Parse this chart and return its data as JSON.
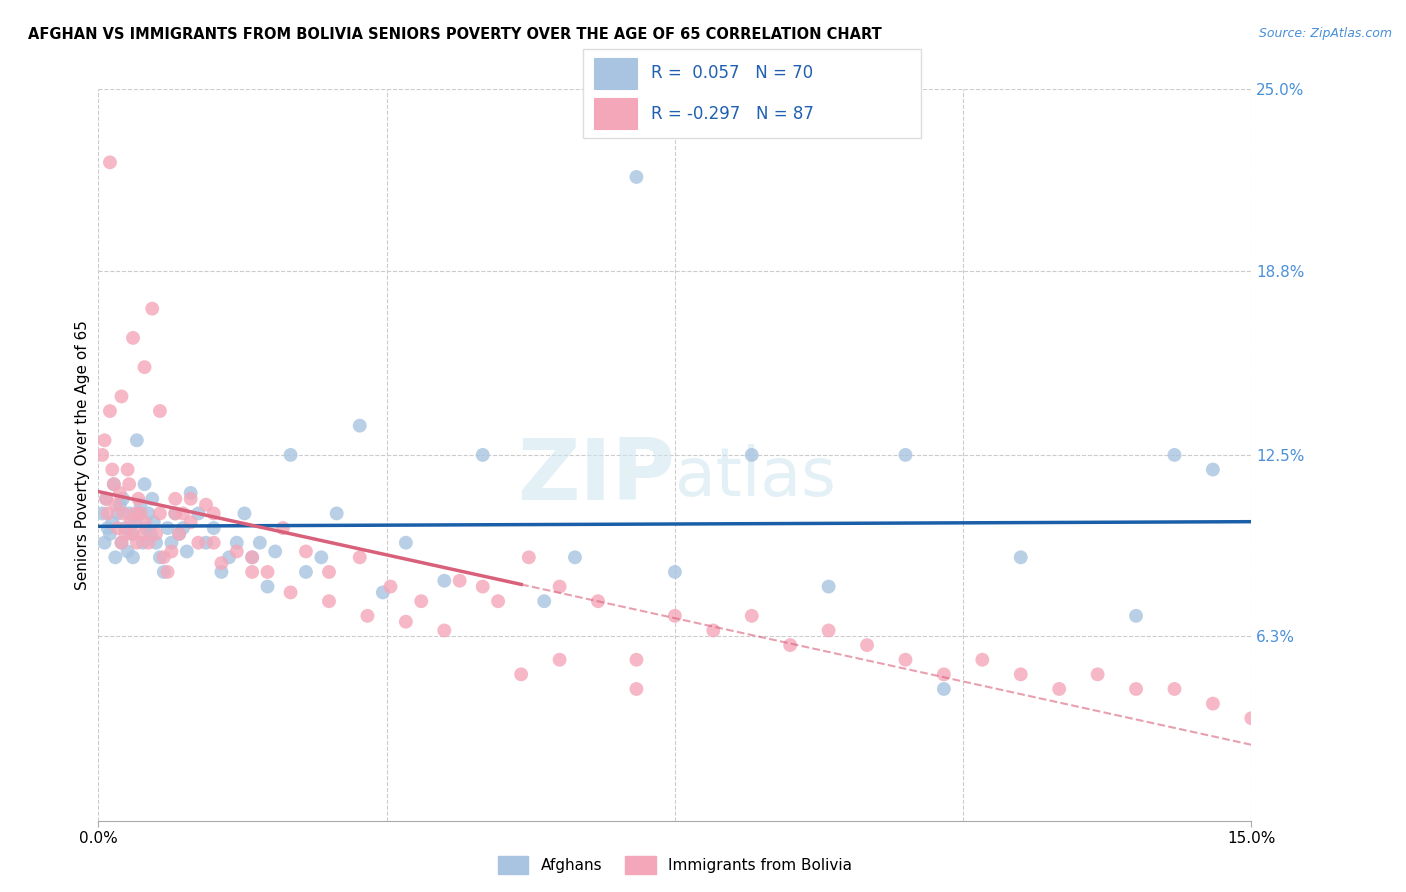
{
  "title": "AFGHAN VS IMMIGRANTS FROM BOLIVIA SENIORS POVERTY OVER THE AGE OF 65 CORRELATION CHART",
  "source": "Source: ZipAtlas.com",
  "ylabel": "Seniors Poverty Over the Age of 65",
  "yticks": [
    6.3,
    12.5,
    18.8,
    25.0
  ],
  "xlim": [
    0.0,
    15.0
  ],
  "ylim": [
    0.0,
    25.0
  ],
  "afghans_R": 0.057,
  "afghans_N": 70,
  "bolivia_R": -0.297,
  "bolivia_N": 87,
  "afghans_color": "#a8c4e0",
  "bolivia_color": "#f4a7b9",
  "line_afghan_color": "#1a5fa8",
  "line_bolivia_color": "#d9607a",
  "legend_labels": [
    "Afghans",
    "Immigrants from Bolivia"
  ],
  "afghans_x": [
    0.05,
    0.08,
    0.1,
    0.12,
    0.15,
    0.18,
    0.2,
    0.22,
    0.25,
    0.28,
    0.3,
    0.32,
    0.35,
    0.38,
    0.4,
    0.42,
    0.45,
    0.48,
    0.5,
    0.52,
    0.55,
    0.58,
    0.6,
    0.62,
    0.65,
    0.68,
    0.7,
    0.72,
    0.75,
    0.8,
    0.85,
    0.9,
    0.95,
    1.0,
    1.05,
    1.1,
    1.15,
    1.2,
    1.3,
    1.4,
    1.5,
    1.6,
    1.7,
    1.8,
    1.9,
    2.0,
    2.1,
    2.2,
    2.3,
    2.5,
    2.7,
    2.9,
    3.1,
    3.4,
    3.7,
    4.0,
    4.5,
    5.0,
    5.8,
    6.2,
    7.0,
    7.5,
    8.5,
    9.5,
    10.5,
    11.0,
    12.0,
    13.5,
    14.0,
    14.5
  ],
  "afghans_y": [
    10.5,
    9.5,
    11.0,
    10.0,
    9.8,
    10.2,
    11.5,
    9.0,
    10.5,
    10.8,
    9.5,
    11.0,
    10.0,
    9.2,
    10.5,
    9.8,
    9.0,
    10.2,
    13.0,
    10.5,
    10.8,
    9.5,
    11.5,
    10.0,
    10.5,
    9.8,
    11.0,
    10.2,
    9.5,
    9.0,
    8.5,
    10.0,
    9.5,
    10.5,
    9.8,
    10.0,
    9.2,
    11.2,
    10.5,
    9.5,
    10.0,
    8.5,
    9.0,
    9.5,
    10.5,
    9.0,
    9.5,
    8.0,
    9.2,
    12.5,
    8.5,
    9.0,
    10.5,
    13.5,
    7.8,
    9.5,
    8.2,
    12.5,
    7.5,
    9.0,
    22.0,
    8.5,
    12.5,
    8.0,
    12.5,
    4.5,
    9.0,
    7.0,
    12.5,
    12.0
  ],
  "bolivia_x": [
    0.05,
    0.08,
    0.1,
    0.12,
    0.15,
    0.18,
    0.2,
    0.22,
    0.25,
    0.28,
    0.3,
    0.32,
    0.35,
    0.38,
    0.4,
    0.42,
    0.45,
    0.48,
    0.5,
    0.52,
    0.55,
    0.58,
    0.6,
    0.65,
    0.7,
    0.75,
    0.8,
    0.85,
    0.9,
    0.95,
    1.0,
    1.05,
    1.1,
    1.2,
    1.3,
    1.4,
    1.5,
    1.6,
    1.8,
    2.0,
    2.2,
    2.4,
    2.7,
    3.0,
    3.4,
    3.8,
    4.2,
    4.7,
    5.2,
    5.6,
    6.0,
    6.5,
    7.0,
    7.5,
    8.0,
    8.5,
    9.0,
    9.5,
    10.0,
    10.5,
    11.0,
    11.5,
    12.0,
    12.5,
    13.0,
    13.5,
    14.0,
    14.5,
    15.0,
    0.15,
    0.3,
    0.45,
    0.6,
    0.8,
    1.0,
    1.2,
    1.5,
    2.0,
    2.5,
    3.0,
    3.5,
    4.0,
    4.5,
    5.0,
    5.5,
    6.0,
    7.0
  ],
  "bolivia_y": [
    12.5,
    13.0,
    11.0,
    10.5,
    14.0,
    12.0,
    11.5,
    10.8,
    10.0,
    11.2,
    9.5,
    10.5,
    9.8,
    12.0,
    11.5,
    10.2,
    9.8,
    10.5,
    9.5,
    11.0,
    10.5,
    9.8,
    10.2,
    9.5,
    17.5,
    9.8,
    10.5,
    9.0,
    8.5,
    9.2,
    11.0,
    9.8,
    10.5,
    10.2,
    9.5,
    10.8,
    9.5,
    8.8,
    9.2,
    9.0,
    8.5,
    10.0,
    9.2,
    8.5,
    9.0,
    8.0,
    7.5,
    8.2,
    7.5,
    9.0,
    8.0,
    7.5,
    5.5,
    7.0,
    6.5,
    7.0,
    6.0,
    6.5,
    6.0,
    5.5,
    5.0,
    5.5,
    5.0,
    4.5,
    5.0,
    4.5,
    4.5,
    4.0,
    3.5,
    22.5,
    14.5,
    16.5,
    15.5,
    14.0,
    10.5,
    11.0,
    10.5,
    8.5,
    7.8,
    7.5,
    7.0,
    6.8,
    6.5,
    8.0,
    5.0,
    5.5,
    4.5
  ]
}
